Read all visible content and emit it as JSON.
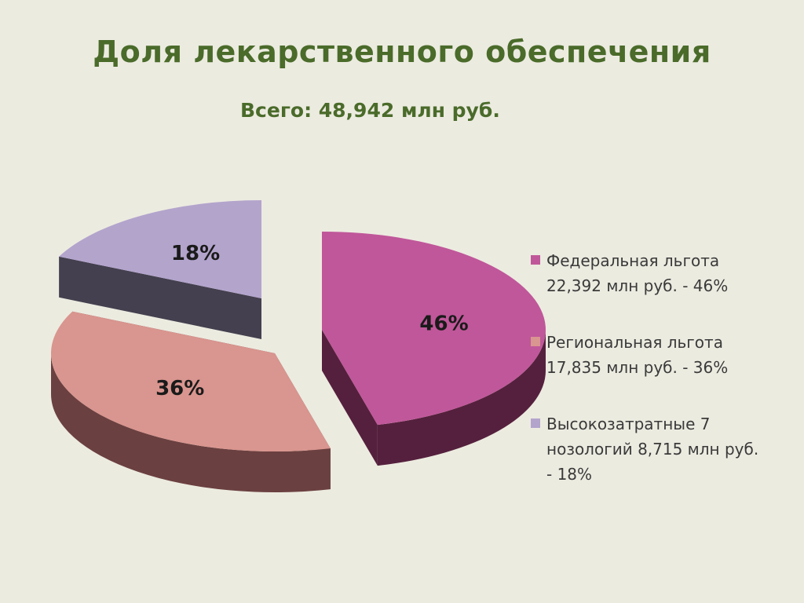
{
  "title": "Доля лекарственного обеспечения",
  "subtitle": "Всего:  48,942 млн руб.",
  "chart_data": {
    "type": "pie",
    "categories": [
      "Федеральная льгота 22,392 млн руб. - 46%",
      "Региональная льгота 17,835 млн руб. - 36%",
      "Высокозатратные 7 нозологий 8,715 млн руб. - 18%"
    ],
    "values": [
      46,
      36,
      18
    ],
    "labels": [
      "46%",
      "36%",
      "18%"
    ],
    "colors": [
      "#c0579a",
      "#d9958f",
      "#b3a4cc"
    ],
    "side_colors": [
      "#55203d",
      "#6b4040",
      "#44404f"
    ],
    "legend_position": "right",
    "exploded": true,
    "3d": true
  }
}
